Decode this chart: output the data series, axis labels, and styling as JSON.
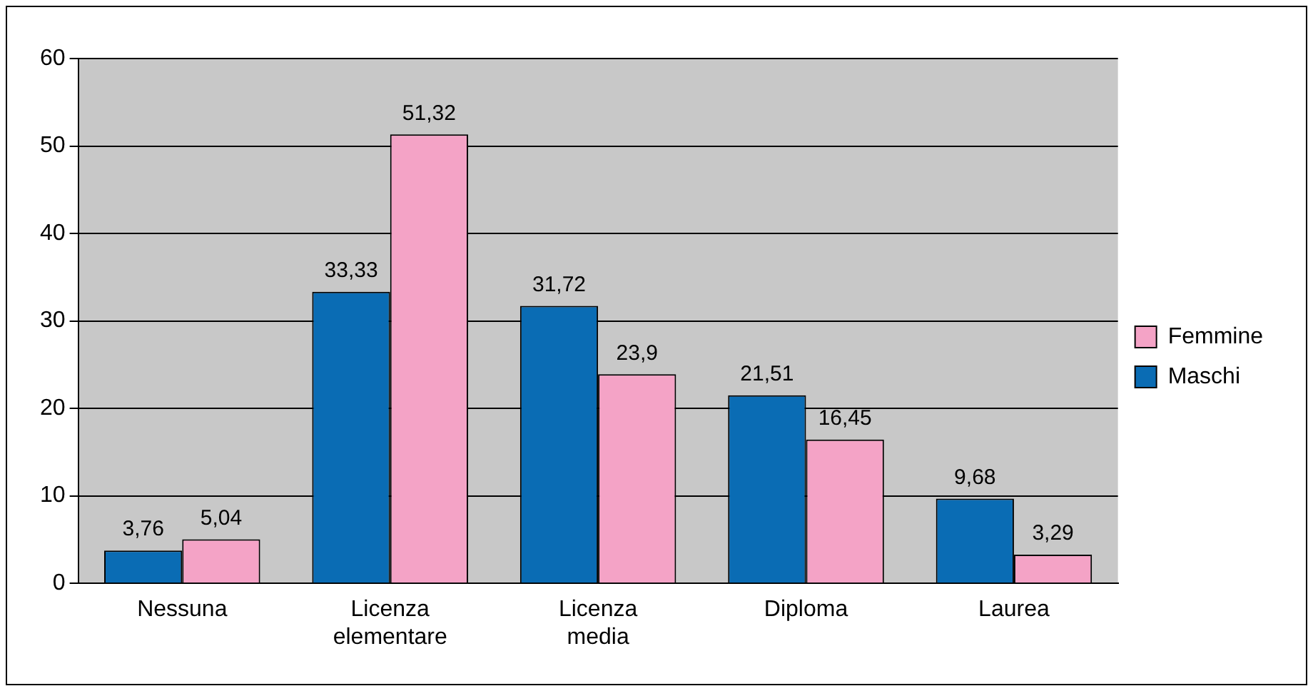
{
  "chart_data": {
    "type": "bar",
    "categories": [
      "Nessuna",
      "Licenza elementare",
      "Licenza media",
      "Diploma",
      "Laurea"
    ],
    "series": [
      {
        "name": "Maschi",
        "color": "#0a6cb4",
        "values": [
          3.76,
          33.33,
          31.72,
          21.51,
          9.68
        ],
        "value_labels": [
          "3,76",
          "33,33",
          "31,72",
          "21,51",
          "9,68"
        ]
      },
      {
        "name": "Femmine",
        "color": "#f4a3c6",
        "values": [
          5.04,
          51.32,
          23.9,
          16.45,
          3.29
        ],
        "value_labels": [
          "5,04",
          "51,32",
          "23,9",
          "16,45",
          "3,29"
        ]
      }
    ],
    "ylim": [
      0,
      60
    ],
    "yticks": [
      0,
      10,
      20,
      30,
      40,
      50,
      60
    ],
    "grid": "y",
    "legend": "right"
  }
}
